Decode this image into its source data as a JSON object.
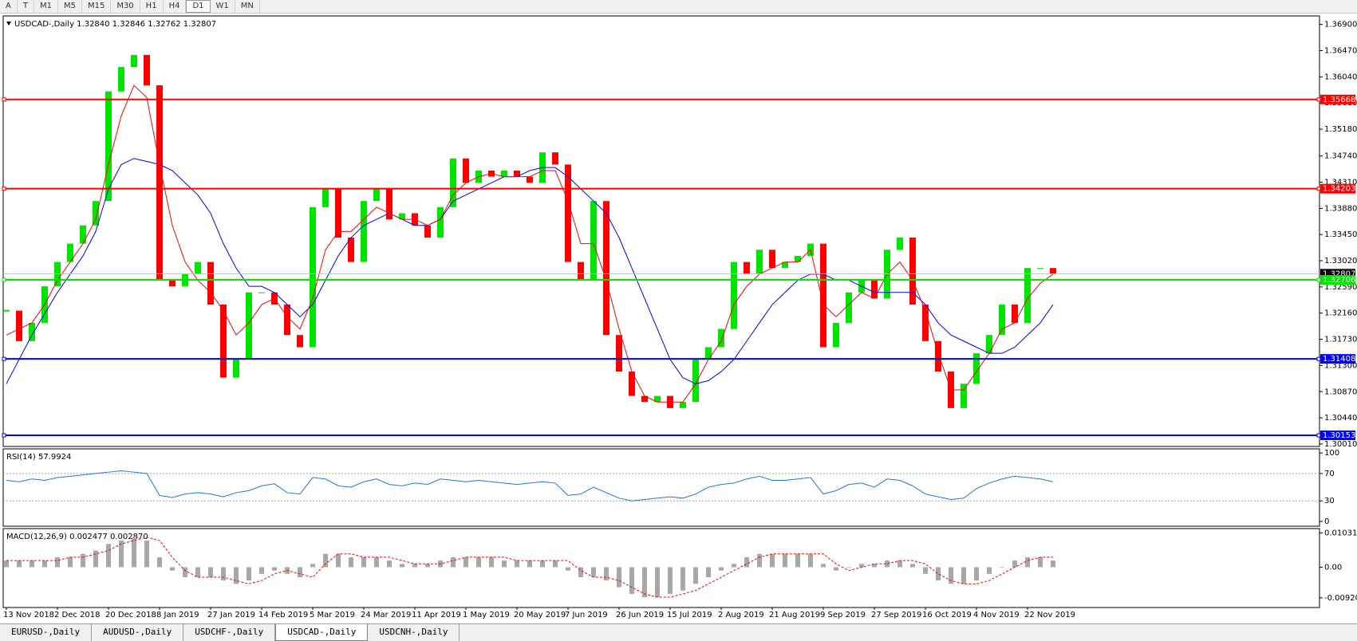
{
  "toolbar": {
    "tools": [
      "A",
      "T"
    ],
    "timeframes": [
      "M1",
      "M5",
      "M15",
      "M30",
      "H1",
      "H4",
      "D1",
      "W1",
      "MN"
    ],
    "active": "D1"
  },
  "tabs": {
    "items": [
      "EURUSD-,Daily",
      "AUDUSD-,Daily",
      "USDCHF-,Daily",
      "USDCAD-,Daily",
      "USDCNH-,Daily"
    ],
    "active": "USDCAD-,Daily"
  },
  "chart_data": [
    {
      "type": "candlestick",
      "title": "USDCAD-,Daily  1.32840 1.32846 1.32762 1.32807",
      "categories": [
        "13 Nov 2018",
        null,
        null,
        null,
        "2 Dec 2018",
        null,
        null,
        null,
        "20 Dec 2018",
        null,
        null,
        null,
        "8 Jan 2019",
        null,
        null,
        null,
        "27 Jan 2019",
        null,
        null,
        null,
        "14 Feb 2019",
        null,
        null,
        null,
        "5 Mar 2019",
        null,
        null,
        null,
        "24 Mar 2019",
        null,
        null,
        null,
        "11 Apr 2019",
        null,
        null,
        null,
        "1 May 2019",
        null,
        null,
        null,
        "20 May 2019",
        null,
        null,
        null,
        "7 Jun 2019",
        null,
        null,
        null,
        "26 Jun 2019",
        null,
        null,
        null,
        "15 Jul 2019",
        null,
        null,
        null,
        "2 Aug 2019",
        null,
        null,
        null,
        "21 Aug 2019",
        null,
        null,
        null,
        "9 Sep 2019",
        null,
        null,
        null,
        "27 Sep 2019",
        null,
        null,
        null,
        "16 Oct 2019",
        null,
        null,
        null,
        "4 Nov 2019",
        null,
        null,
        null,
        "22 Nov 2019",
        null,
        null
      ],
      "series": [
        {
          "type": "candlestick",
          "up_color": "#00e600",
          "down_color": "#ff0000",
          "values": [
            1.322,
            1.317,
            1.32,
            1.326,
            1.33,
            1.333,
            1.336,
            1.34,
            1.358,
            1.362,
            1.364,
            1.359,
            1.327,
            1.326,
            1.328,
            1.33,
            1.323,
            1.311,
            1.314,
            1.325,
            1.325,
            1.323,
            1.318,
            1.316,
            1.339,
            1.342,
            1.334,
            1.33,
            1.34,
            1.342,
            1.337,
            1.338,
            1.336,
            1.334,
            1.339,
            1.347,
            1.343,
            1.345,
            1.344,
            1.345,
            1.344,
            1.343,
            1.348,
            1.346,
            1.33,
            1.327,
            1.34,
            1.318,
            1.312,
            1.308,
            1.307,
            1.308,
            1.306,
            1.307,
            1.314,
            1.316,
            1.319,
            1.33,
            1.328,
            1.332,
            1.329,
            1.33,
            1.331,
            1.333,
            1.316,
            1.32,
            1.325,
            1.327,
            1.324,
            1.332,
            1.334,
            1.323,
            1.317,
            1.312,
            1.306,
            1.31,
            1.315,
            1.318,
            1.323,
            1.32,
            1.329,
            1.329,
            1.32807
          ]
        },
        {
          "type": "line",
          "color": "#0000ff",
          "values": [
            1.31,
            1.314,
            1.318,
            1.3215,
            1.325,
            1.328,
            1.331,
            1.335,
            1.342,
            1.346,
            1.347,
            1.3465,
            1.346,
            1.345,
            1.343,
            1.341,
            1.338,
            1.333,
            1.329,
            1.326,
            1.326,
            1.325,
            1.323,
            1.321,
            1.323,
            1.327,
            1.331,
            1.334,
            1.336,
            1.337,
            1.338,
            1.337,
            1.336,
            1.336,
            1.337,
            1.34,
            1.341,
            1.342,
            1.343,
            1.344,
            1.344,
            1.345,
            1.3455,
            1.3455,
            1.344,
            1.342,
            1.34,
            1.338,
            1.334,
            1.329,
            1.324,
            1.319,
            1.314,
            1.311,
            1.31,
            1.3105,
            1.312,
            1.314,
            1.317,
            1.32,
            1.323,
            1.325,
            1.327,
            1.328,
            1.328,
            1.327,
            1.327,
            1.326,
            1.325,
            1.325,
            1.325,
            1.325,
            1.323,
            1.32,
            1.318,
            1.317,
            1.316,
            1.315,
            1.315,
            1.316,
            1.318,
            1.32,
            1.323
          ]
        },
        {
          "type": "line",
          "color": "#ff0000",
          "values": [
            1.318,
            1.319,
            1.32,
            1.323,
            1.327,
            1.33,
            1.333,
            1.337,
            1.346,
            1.354,
            1.359,
            1.357,
            1.346,
            1.336,
            1.33,
            1.327,
            1.325,
            1.322,
            1.318,
            1.32,
            1.323,
            1.324,
            1.321,
            1.319,
            1.324,
            1.332,
            1.335,
            1.335,
            1.337,
            1.339,
            1.338,
            1.337,
            1.337,
            1.336,
            1.337,
            1.341,
            1.343,
            1.344,
            1.3445,
            1.344,
            1.344,
            1.344,
            1.345,
            1.345,
            1.34,
            1.333,
            1.333,
            1.327,
            1.319,
            1.312,
            1.308,
            1.307,
            1.307,
            1.307,
            1.31,
            1.314,
            1.317,
            1.323,
            1.326,
            1.328,
            1.329,
            1.33,
            1.33,
            1.332,
            1.323,
            1.321,
            1.323,
            1.325,
            1.324,
            1.328,
            1.33,
            1.327,
            1.322,
            1.315,
            1.309,
            1.309,
            1.312,
            1.315,
            1.319,
            1.32,
            1.324,
            1.3265,
            1.328
          ]
        }
      ],
      "levels": [
        {
          "value": 1.35668,
          "color": "#ff0000"
        },
        {
          "value": 1.34203,
          "color": "#ff0000"
        },
        {
          "value": 1.32706,
          "color": "#00e600"
        },
        {
          "value": 1.31408,
          "color": "#0000ff"
        },
        {
          "value": 1.30153,
          "color": "#0000ff"
        }
      ],
      "last_price": 1.32807,
      "ylim": [
        1.2997,
        1.3704
      ],
      "yticks": [
        {
          "value": 1.369,
          "label": "1.36900"
        },
        {
          "value": 1.3647,
          "label": "1.36470"
        },
        {
          "value": 1.3604,
          "label": "1.36040"
        },
        {
          "value": 1.3561,
          "label": "1.35610"
        },
        {
          "value": 1.3518,
          "label": "1.35180"
        },
        {
          "value": 1.3474,
          "label": "1.34740"
        },
        {
          "value": 1.3431,
          "label": "1.34310"
        },
        {
          "value": 1.3388,
          "label": "1.33880"
        },
        {
          "value": 1.3345,
          "label": "1.33450"
        },
        {
          "value": 1.3302,
          "label": "1.33020"
        },
        {
          "value": 1.3259,
          "label": "1.32590"
        },
        {
          "value": 1.3216,
          "label": "1.32160"
        },
        {
          "value": 1.3173,
          "label": "1.31730"
        },
        {
          "value": 1.313,
          "label": "1.31300"
        },
        {
          "value": 1.3087,
          "label": "1.30870"
        },
        {
          "value": 1.3044,
          "label": "1.30440"
        },
        {
          "value": 1.3001,
          "label": "1.30010"
        }
      ]
    },
    {
      "type": "line",
      "title": "RSI(14) 57.9924",
      "color": "#1e78dc",
      "values": [
        60,
        58,
        62,
        60,
        64,
        66,
        68,
        70,
        72,
        74,
        72,
        70,
        38,
        35,
        40,
        42,
        40,
        36,
        42,
        45,
        52,
        55,
        42,
        40,
        64,
        62,
        52,
        50,
        58,
        62,
        54,
        52,
        56,
        54,
        62,
        60,
        58,
        60,
        58,
        56,
        54,
        56,
        58,
        56,
        38,
        40,
        50,
        42,
        34,
        30,
        32,
        34,
        36,
        34,
        40,
        50,
        54,
        56,
        62,
        66,
        60,
        60,
        62,
        64,
        40,
        45,
        54,
        56,
        50,
        62,
        60,
        52,
        40,
        36,
        32,
        34,
        48,
        56,
        62,
        66,
        64,
        62,
        58
      ],
      "levels": [
        70,
        30
      ],
      "ylim": [
        -7,
        106
      ],
      "yticks": [
        100,
        70,
        30,
        0
      ]
    },
    {
      "type": "bar",
      "title": "MACD(12,26,9) 0.002477 0.002870",
      "color": "#a8a8a8",
      "values": [
        0.002,
        0.002,
        0.002,
        0.002,
        0.003,
        0.003,
        0.004,
        0.005,
        0.007,
        0.008,
        0.009,
        0.008,
        0.003,
        -0.001,
        -0.003,
        -0.003,
        -0.003,
        -0.004,
        -0.005,
        -0.004,
        -0.002,
        -0.001,
        -0.002,
        -0.003,
        0.001,
        0.004,
        0.004,
        0.003,
        0.003,
        0.003,
        0.002,
        0.001,
        0.001,
        0.001,
        0.002,
        0.003,
        0.003,
        0.003,
        0.003,
        0.002,
        0.002,
        0.002,
        0.002,
        0.002,
        -0.001,
        -0.003,
        -0.003,
        -0.004,
        -0.006,
        -0.008,
        -0.009,
        -0.009,
        -0.008,
        -0.007,
        -0.005,
        -0.003,
        -0.001,
        0.001,
        0.003,
        0.004,
        0.004,
        0.004,
        0.004,
        0.004,
        0.001,
        -0.001,
        0,
        0.001,
        0.001,
        0.002,
        0.002,
        0.001,
        -0.002,
        -0.004,
        -0.005,
        -0.005,
        -0.004,
        -0.002,
        0,
        0.002,
        0.003,
        0.003,
        0.002
      ],
      "series": [
        {
          "type": "line",
          "color": "#ff0000",
          "values": [
            0.002,
            0.002,
            0.002,
            0.002,
            0.002,
            0.003,
            0.003,
            0.004,
            0.005,
            0.007,
            0.008,
            0.009,
            0.008,
            0.003,
            -0.001,
            -0.003,
            -0.003,
            -0.003,
            -0.004,
            -0.005,
            -0.004,
            -0.002,
            -0.001,
            -0.002,
            -0.003,
            0.001,
            0.004,
            0.004,
            0.003,
            0.003,
            0.003,
            0.002,
            0.001,
            0.001,
            0.001,
            0.002,
            0.003,
            0.003,
            0.003,
            0.003,
            0.002,
            0.002,
            0.002,
            0.002,
            0.002,
            -0.001,
            -0.003,
            -0.003,
            -0.004,
            -0.006,
            -0.008,
            -0.009,
            -0.009,
            -0.008,
            -0.007,
            -0.005,
            -0.003,
            -0.001,
            0.001,
            0.003,
            0.004,
            0.004,
            0.004,
            0.004,
            0.004,
            0.001,
            -0.001,
            0,
            0.001,
            0.001,
            0.002,
            0.002,
            0.001,
            -0.002,
            -0.004,
            -0.005,
            -0.005,
            -0.004,
            -0.002,
            0,
            0.002,
            0.003,
            0.003
          ]
        }
      ],
      "ylim": [
        -0.0121,
        0.0116
      ],
      "yticks": [
        0.010311,
        {
          "value": 0,
          "label": "0.00"
        },
        -0.009203
      ]
    }
  ]
}
